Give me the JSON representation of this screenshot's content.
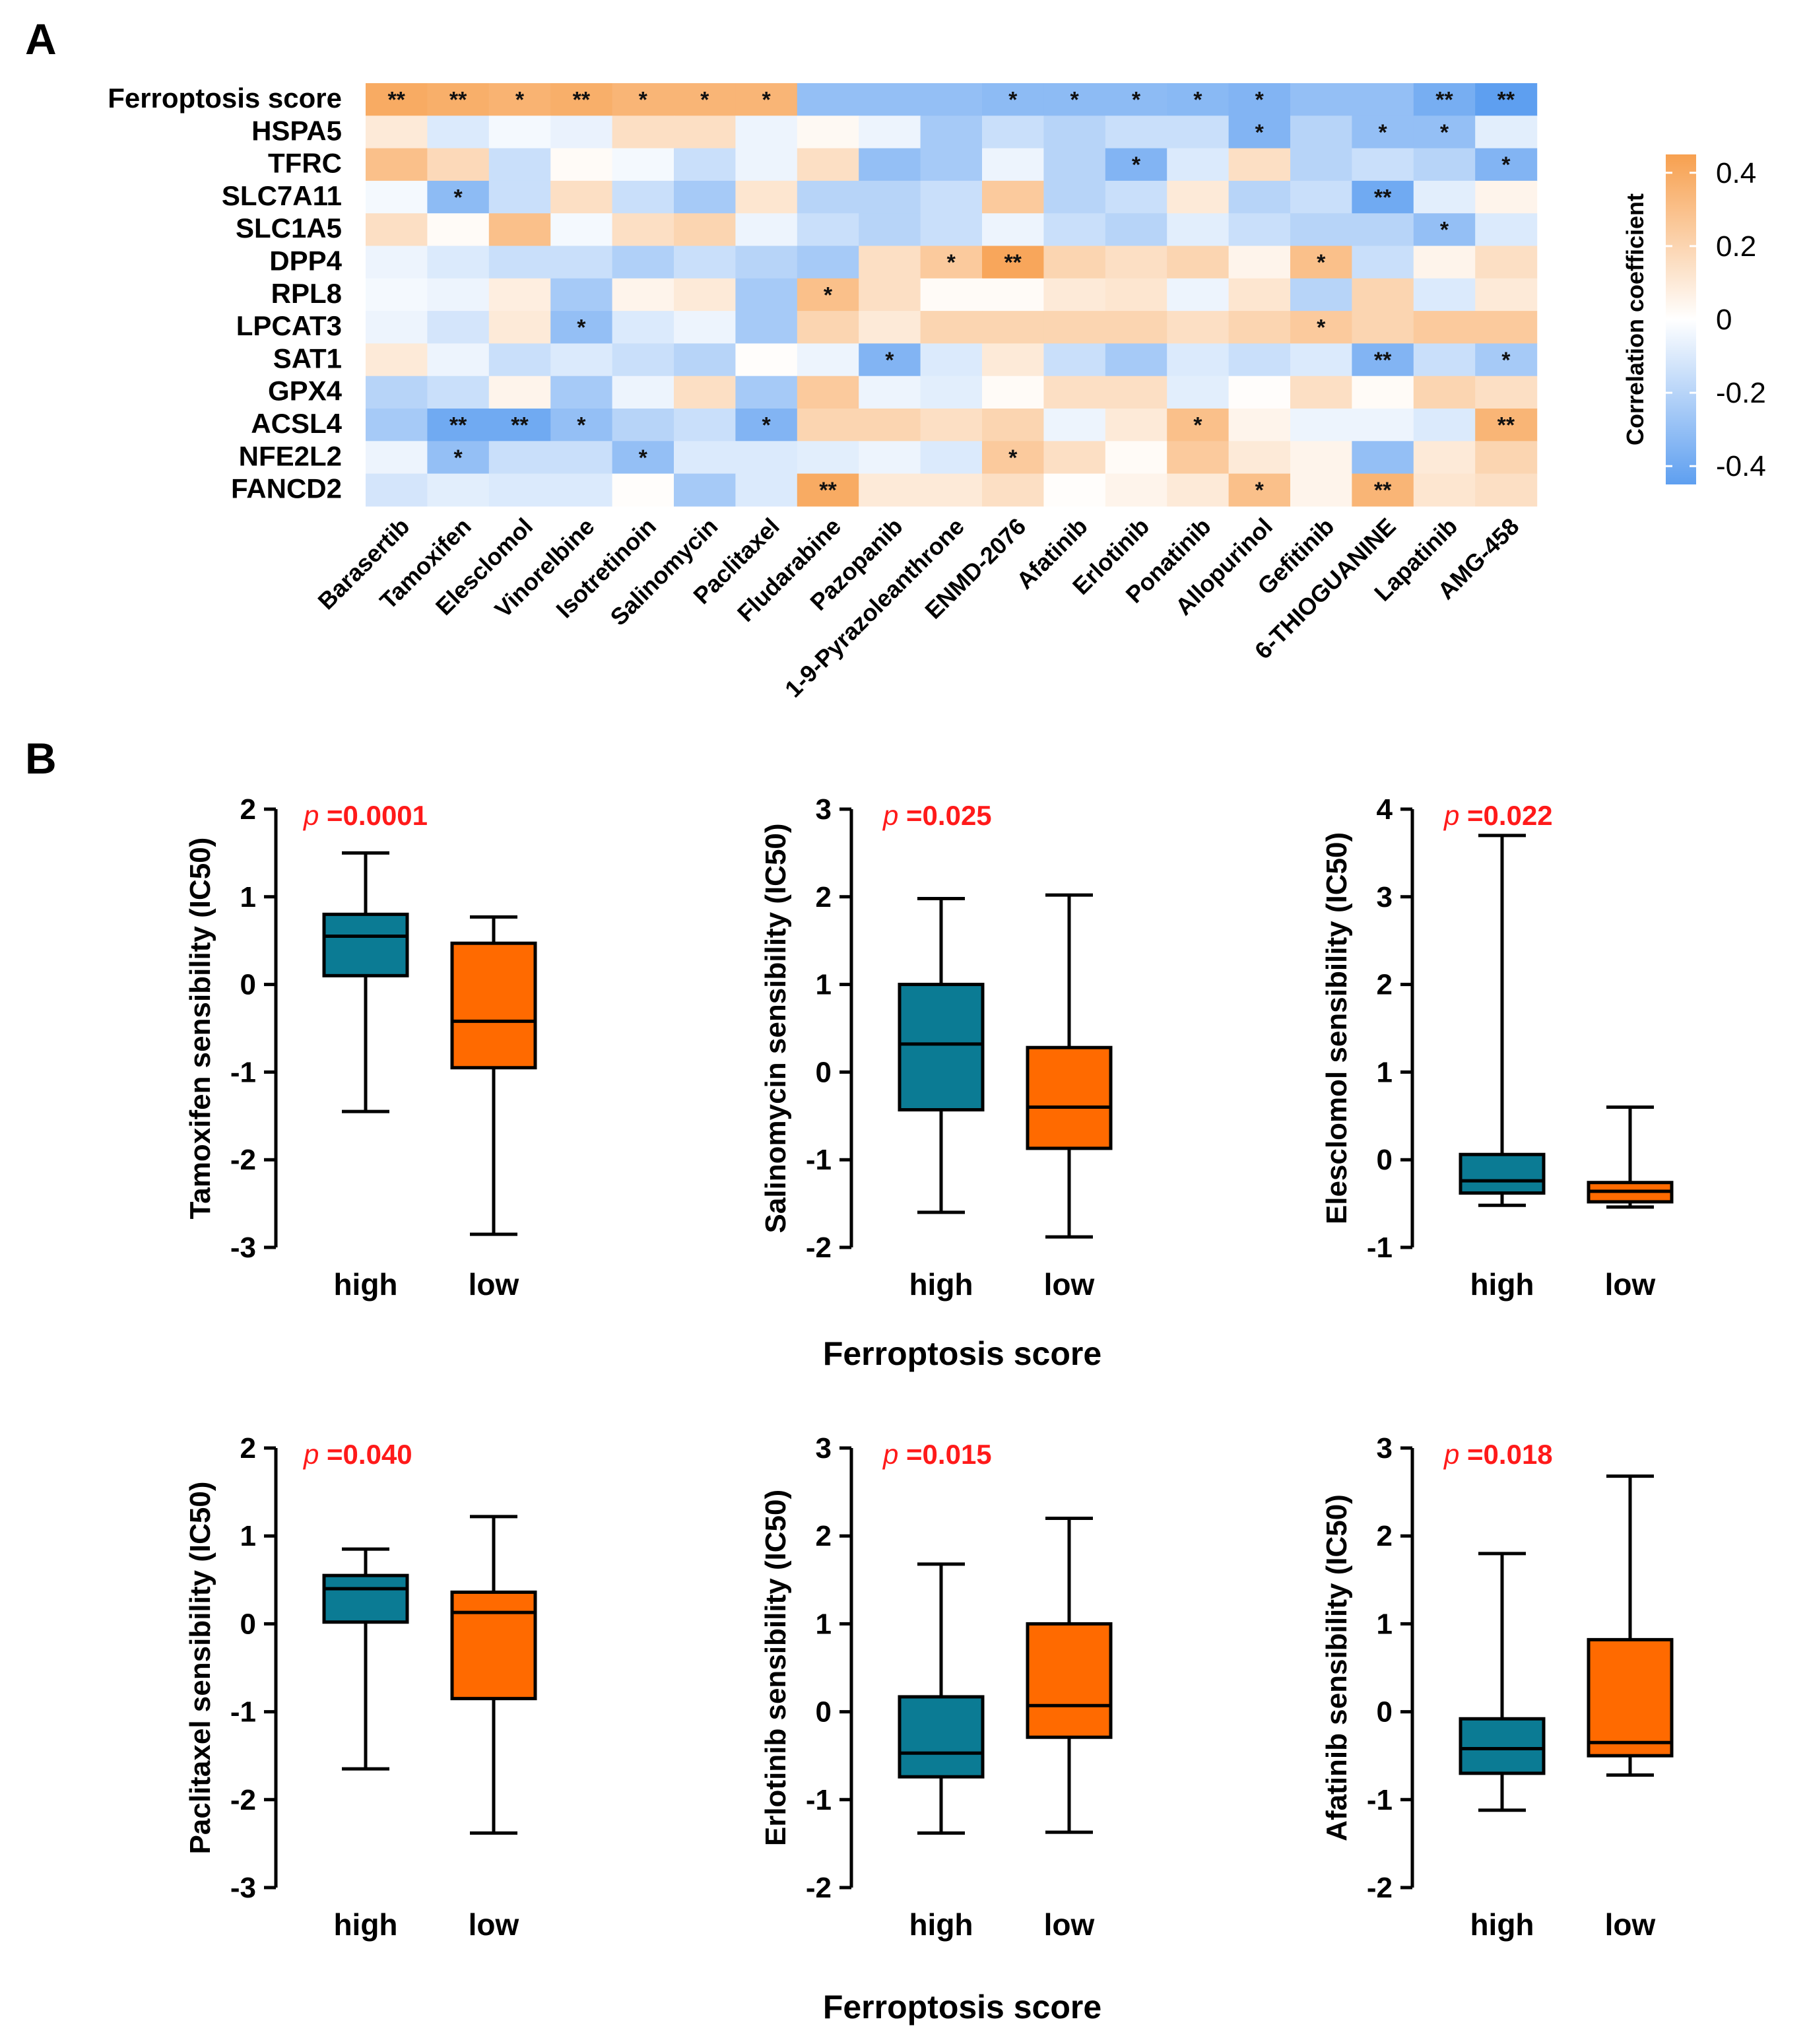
{
  "panels": {
    "a": "A",
    "b": "B"
  },
  "colors": {
    "high": "#0b7b94",
    "low": "#ff6a00",
    "pos": "#f7a04f",
    "neg": "#5e9ff0",
    "mid": "#ffffff",
    "pval": "#ff1a1a"
  },
  "chart_data": [
    {
      "type": "heatmap",
      "title": "",
      "rows": [
        "Ferroptosis score",
        "HSPA5",
        "TFRC",
        "SLC7A11",
        "SLC1A5",
        "DPP4",
        "RPL8",
        "LPCAT3",
        "SAT1",
        "GPX4",
        "ACSL4",
        "NFE2L2",
        "FANCD2"
      ],
      "columns": [
        "Barasertib",
        "Tamoxifen",
        "Elesclomol",
        "Vinorelbine",
        "Isotretinoin",
        "Salinomycin",
        "Paclitaxel",
        "Fludarabine",
        "Pazopanib",
        "1-9-Pyrazoleanthrone",
        "ENMD-2076",
        "Afatinib",
        "Erlotinib",
        "Ponatinib",
        "Allopurinol",
        "Gefitinib",
        "6-THIOGUANINE",
        "Lapatinib",
        "AMG-458"
      ],
      "values": [
        [
          0.4,
          0.38,
          0.36,
          0.38,
          0.35,
          0.35,
          0.35,
          -0.3,
          -0.3,
          -0.3,
          -0.32,
          -0.32,
          -0.32,
          -0.33,
          -0.35,
          -0.3,
          -0.3,
          -0.38,
          -0.45
        ],
        [
          0.1,
          -0.1,
          -0.03,
          -0.06,
          0.15,
          0.15,
          -0.05,
          0.03,
          -0.05,
          -0.25,
          -0.15,
          -0.2,
          -0.15,
          -0.15,
          -0.35,
          -0.2,
          -0.3,
          -0.3,
          -0.08
        ],
        [
          0.3,
          0.18,
          -0.15,
          0.02,
          -0.03,
          -0.15,
          -0.05,
          0.15,
          -0.3,
          -0.25,
          -0.05,
          -0.2,
          -0.35,
          -0.1,
          0.15,
          -0.2,
          -0.15,
          -0.2,
          -0.35
        ],
        [
          -0.03,
          -0.32,
          -0.15,
          0.15,
          -0.15,
          -0.25,
          0.12,
          -0.2,
          -0.2,
          -0.15,
          0.25,
          -0.2,
          -0.15,
          0.1,
          -0.2,
          -0.15,
          -0.4,
          -0.08,
          0.05
        ],
        [
          0.15,
          0.02,
          0.3,
          -0.03,
          0.15,
          0.2,
          -0.05,
          -0.15,
          -0.2,
          -0.15,
          -0.05,
          -0.15,
          -0.2,
          -0.08,
          -0.15,
          -0.2,
          -0.2,
          -0.3,
          -0.1
        ],
        [
          -0.05,
          -0.1,
          -0.15,
          -0.15,
          -0.22,
          -0.15,
          -0.2,
          -0.25,
          0.15,
          0.25,
          0.42,
          0.2,
          0.15,
          0.2,
          0.05,
          0.3,
          -0.15,
          0.05,
          0.15
        ],
        [
          -0.03,
          -0.05,
          0.08,
          -0.25,
          0.05,
          0.1,
          -0.25,
          0.3,
          0.15,
          0.02,
          0.02,
          0.1,
          0.12,
          -0.05,
          0.12,
          -0.2,
          0.2,
          -0.1,
          0.1
        ],
        [
          -0.05,
          -0.12,
          0.1,
          -0.3,
          -0.1,
          -0.05,
          -0.25,
          0.2,
          0.1,
          0.2,
          0.2,
          0.2,
          0.2,
          0.15,
          0.2,
          0.25,
          0.2,
          0.25,
          0.25
        ],
        [
          0.1,
          -0.05,
          -0.15,
          -0.1,
          -0.15,
          -0.2,
          0.01,
          -0.05,
          -0.35,
          -0.1,
          0.1,
          -0.15,
          -0.25,
          -0.1,
          -0.15,
          -0.1,
          -0.35,
          -0.15,
          -0.25
        ],
        [
          -0.2,
          -0.15,
          0.05,
          -0.25,
          -0.05,
          0.15,
          -0.25,
          0.25,
          -0.05,
          -0.08,
          0.02,
          0.15,
          0.15,
          -0.08,
          0.01,
          0.15,
          0.02,
          0.2,
          0.15
        ],
        [
          -0.25,
          -0.4,
          -0.4,
          -0.3,
          -0.2,
          -0.15,
          -0.35,
          0.2,
          0.2,
          0.15,
          0.2,
          -0.05,
          0.1,
          0.3,
          0.05,
          -0.05,
          -0.05,
          -0.1,
          0.35
        ],
        [
          -0.05,
          -0.3,
          -0.15,
          -0.15,
          -0.3,
          -0.1,
          -0.1,
          -0.08,
          -0.05,
          -0.1,
          0.25,
          0.15,
          0.02,
          0.25,
          0.1,
          0.05,
          -0.3,
          0.1,
          0.2
        ],
        [
          -0.12,
          -0.08,
          -0.1,
          -0.1,
          0.01,
          -0.25,
          -0.1,
          0.4,
          0.1,
          0.1,
          0.15,
          0.01,
          0.05,
          0.1,
          0.3,
          0.05,
          0.35,
          0.12,
          0.15
        ]
      ],
      "significance": [
        [
          "**",
          "**",
          "*",
          "**",
          "*",
          "*",
          "*",
          "",
          "",
          "",
          "*",
          "*",
          "*",
          "*",
          "*",
          "",
          "",
          "**",
          "**"
        ],
        [
          "",
          "",
          "",
          "",
          "",
          "",
          "",
          "",
          "",
          "",
          "",
          "",
          "",
          "",
          "*",
          "",
          "*",
          "*",
          ""
        ],
        [
          "",
          "",
          "",
          "",
          "",
          "",
          "",
          "",
          "",
          "",
          "",
          "",
          "*",
          "",
          "",
          "",
          "",
          "",
          "*"
        ],
        [
          "",
          "*",
          "",
          "",
          "",
          "",
          "",
          "",
          "",
          "",
          "",
          "",
          "",
          "",
          "",
          "",
          "**",
          "",
          ""
        ],
        [
          "",
          "",
          "",
          "",
          "",
          "",
          "",
          "",
          "",
          "",
          "",
          "",
          "",
          "",
          "",
          "",
          "",
          "*",
          ""
        ],
        [
          "",
          "",
          "",
          "",
          "",
          "",
          "",
          "",
          "",
          "*",
          "**",
          "",
          "",
          "",
          "",
          "*",
          "",
          "",
          ""
        ],
        [
          "",
          "",
          "",
          "",
          "",
          "",
          "",
          "*",
          "",
          "",
          "",
          "",
          "",
          "",
          "",
          "",
          "",
          "",
          ""
        ],
        [
          "",
          "",
          "",
          "*",
          "",
          "",
          "",
          "",
          "",
          "",
          "",
          "",
          "",
          "",
          "",
          "*",
          "",
          "",
          ""
        ],
        [
          "",
          "",
          "",
          "",
          "",
          "",
          "",
          "",
          "*",
          "",
          "",
          "",
          "",
          "",
          "",
          "",
          "**",
          "",
          "*"
        ],
        [
          "",
          "",
          "",
          "",
          "",
          "",
          "",
          "",
          "",
          "",
          "",
          "",
          "",
          "",
          "",
          "",
          "",
          "",
          ""
        ],
        [
          "",
          "**",
          "**",
          "*",
          "",
          "",
          "*",
          "",
          "",
          "",
          "",
          "",
          "",
          "*",
          "",
          "",
          "",
          "",
          "**"
        ],
        [
          "",
          "*",
          "",
          "",
          "*",
          "",
          "",
          "",
          "",
          "",
          "*",
          "",
          "",
          "",
          "",
          "",
          "",
          "",
          ""
        ],
        [
          "",
          "",
          "",
          "",
          "",
          "",
          "",
          "**",
          "",
          "",
          "",
          "",
          "",
          "",
          "*",
          "",
          "**",
          "",
          ""
        ]
      ],
      "colorbar": {
        "title": "Correlation coefficient",
        "range": [
          -0.45,
          0.45
        ],
        "ticks": [
          0.4,
          0.2,
          0,
          -0.2,
          -0.4
        ],
        "tick_labels": [
          "0.4",
          "0.2",
          "0",
          "-0.2",
          "-0.4"
        ]
      }
    },
    {
      "type": "box",
      "title": "",
      "xlabel": "Ferroptosis score",
      "ylabel": "Tamoxifen sensibility (IC50)",
      "categories": [
        "high",
        "low"
      ],
      "ylim": [
        -3,
        2
      ],
      "yticks": [
        "2",
        "1",
        "0",
        "-1",
        "-2",
        "-3"
      ],
      "p_label": "p",
      "p_value": " =0.0001",
      "boxes": [
        {
          "group": "high",
          "min": -1.45,
          "q1": 0.1,
          "median": 0.55,
          "q3": 0.8,
          "max": 1.5
        },
        {
          "group": "low",
          "min": -2.85,
          "q1": -0.95,
          "median": -0.42,
          "q3": 0.47,
          "max": 0.77
        }
      ]
    },
    {
      "type": "box",
      "title": "",
      "xlabel": "Ferroptosis score",
      "ylabel": "Salinomycin sensibility (IC50)",
      "categories": [
        "high",
        "low"
      ],
      "ylim": [
        -2,
        3
      ],
      "yticks": [
        "3",
        "2",
        "1",
        "0",
        "-1",
        "-2"
      ],
      "p_label": "p",
      "p_value": " =0.025",
      "boxes": [
        {
          "group": "high",
          "min": -1.6,
          "q1": -0.43,
          "median": 0.32,
          "q3": 1.0,
          "max": 1.98
        },
        {
          "group": "low",
          "min": -1.88,
          "q1": -0.87,
          "median": -0.4,
          "q3": 0.28,
          "max": 2.02
        }
      ]
    },
    {
      "type": "box",
      "title": "",
      "xlabel": "Ferroptosis score",
      "ylabel": "Elesclomol sensibility (IC50)",
      "categories": [
        "high",
        "low"
      ],
      "ylim": [
        -1,
        4
      ],
      "yticks": [
        "4",
        "3",
        "2",
        "1",
        "0",
        "-1"
      ],
      "p_label": "p",
      "p_value": " =0.022",
      "boxes": [
        {
          "group": "high",
          "min": -0.52,
          "q1": -0.38,
          "median": -0.24,
          "q3": 0.06,
          "max": 3.7
        },
        {
          "group": "low",
          "min": -0.54,
          "q1": -0.48,
          "median": -0.36,
          "q3": -0.26,
          "max": 0.6
        }
      ]
    },
    {
      "type": "box",
      "title": "",
      "xlabel": "Ferroptosis score",
      "ylabel": "Paclitaxel sensibility (IC50)",
      "categories": [
        "high",
        "low"
      ],
      "ylim": [
        -3,
        2
      ],
      "yticks": [
        "2",
        "1",
        "0",
        "-1",
        "-2",
        "-3"
      ],
      "p_label": "p",
      "p_value": " =0.040",
      "boxes": [
        {
          "group": "high",
          "min": -1.65,
          "q1": 0.02,
          "median": 0.4,
          "q3": 0.55,
          "max": 0.85
        },
        {
          "group": "low",
          "min": -2.38,
          "q1": -0.85,
          "median": 0.13,
          "q3": 0.36,
          "max": 1.22
        }
      ]
    },
    {
      "type": "box",
      "title": "",
      "xlabel": "Ferroptosis score",
      "ylabel": "Erlotinib sensibility (IC50)",
      "categories": [
        "high",
        "low"
      ],
      "ylim": [
        -2,
        3
      ],
      "yticks": [
        "3",
        "2",
        "1",
        "0",
        "-1",
        "-2"
      ],
      "p_label": "p",
      "p_value": " =0.015",
      "boxes": [
        {
          "group": "high",
          "min": -1.38,
          "q1": -0.74,
          "median": -0.47,
          "q3": 0.17,
          "max": 1.68
        },
        {
          "group": "low",
          "min": -1.37,
          "q1": -0.29,
          "median": 0.07,
          "q3": 1.0,
          "max": 2.2
        }
      ]
    },
    {
      "type": "box",
      "title": "",
      "xlabel": "Ferroptosis score",
      "ylabel": "Afatinib sensibility (IC50)",
      "categories": [
        "high",
        "low"
      ],
      "ylim": [
        -2,
        3
      ],
      "yticks": [
        "3",
        "2",
        "1",
        "0",
        "-1",
        "-2"
      ],
      "p_label": "p",
      "p_value": " =0.018",
      "boxes": [
        {
          "group": "high",
          "min": -1.12,
          "q1": -0.7,
          "median": -0.42,
          "q3": -0.08,
          "max": 1.8
        },
        {
          "group": "low",
          "min": -0.72,
          "q1": -0.5,
          "median": -0.35,
          "q3": 0.82,
          "max": 2.68
        }
      ]
    }
  ]
}
